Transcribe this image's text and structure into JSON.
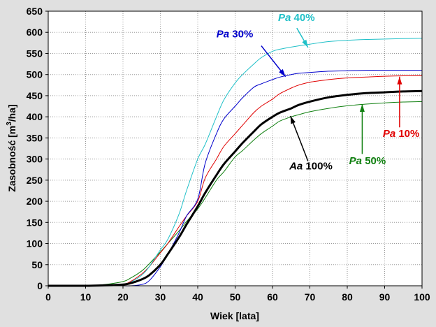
{
  "chart_data": {
    "type": "line",
    "xlabel": "Wiek [lata]",
    "ylabel_prefix": "Zasobność [m",
    "ylabel_sup": "3",
    "ylabel_suffix": "/ha]",
    "xlim": [
      0,
      100
    ],
    "ylim": [
      0,
      650
    ],
    "xticks": [
      0,
      10,
      20,
      30,
      40,
      50,
      60,
      70,
      80,
      90,
      100
    ],
    "yticks": [
      0,
      50,
      100,
      150,
      200,
      250,
      300,
      350,
      400,
      450,
      500,
      550,
      600,
      650
    ],
    "grid": true,
    "x": [
      0,
      10,
      15,
      20,
      22,
      25,
      27,
      30,
      32,
      35,
      37,
      40,
      42,
      45,
      47,
      50,
      52,
      55,
      57,
      60,
      62,
      65,
      67,
      70,
      75,
      80,
      85,
      90,
      95,
      100
    ],
    "series": [
      {
        "name": "Aa 100%",
        "color": "#000000",
        "width": 3,
        "values": [
          0,
          0,
          1,
          3,
          6,
          15,
          25,
          50,
          75,
          115,
          145,
          188,
          220,
          262,
          288,
          318,
          338,
          365,
          382,
          400,
          410,
          420,
          428,
          436,
          446,
          452,
          456,
          458,
          460,
          461
        ]
      },
      {
        "name": "Pa 10%",
        "color": "#e00000",
        "width": 1,
        "values": [
          0,
          0,
          0,
          4,
          10,
          28,
          45,
          78,
          100,
          140,
          165,
          200,
          255,
          300,
          330,
          360,
          380,
          410,
          425,
          442,
          455,
          468,
          475,
          482,
          488,
          492,
          494,
          496,
          497,
          497
        ]
      },
      {
        "name": "Pa 30%",
        "color": "#0000cc",
        "width": 1,
        "values": [
          0,
          0,
          0,
          0,
          0,
          3,
          12,
          45,
          75,
          125,
          165,
          205,
          290,
          360,
          395,
          425,
          445,
          470,
          478,
          488,
          494,
          500,
          503,
          505,
          508,
          509,
          510,
          510,
          510,
          510
        ]
      },
      {
        "name": "Pa 40%",
        "color": "#20c0c8",
        "width": 1,
        "values": [
          0,
          0,
          0,
          2,
          8,
          25,
          45,
          85,
          110,
          170,
          225,
          300,
          335,
          400,
          440,
          480,
          500,
          525,
          540,
          555,
          560,
          565,
          568,
          572,
          578,
          581,
          583,
          584,
          585,
          586
        ]
      },
      {
        "name": "Pa 50%",
        "color": "#108010",
        "width": 1,
        "values": [
          0,
          0,
          3,
          10,
          18,
          35,
          52,
          80,
          100,
          130,
          152,
          182,
          208,
          250,
          270,
          305,
          320,
          345,
          360,
          378,
          390,
          400,
          405,
          412,
          420,
          426,
          430,
          433,
          435,
          436
        ]
      }
    ],
    "annotations": [
      {
        "series": 3,
        "italic": "Pa",
        "rest": " 40%",
        "color": "#20c0c8",
        "label_at": [
          61.5,
          627
        ],
        "arrow_from": [
          66.5,
          610
        ],
        "arrow_to": [
          69.5,
          564
        ]
      },
      {
        "series": 2,
        "italic": "Pa",
        "rest": " 30%",
        "color": "#0000cc",
        "label_at": [
          45,
          588
        ],
        "arrow_from": [
          57,
          568
        ],
        "arrow_to": [
          63.5,
          495
        ]
      },
      {
        "series": 1,
        "italic": "Pa",
        "rest": " 10%",
        "color": "#e00000",
        "label_at": [
          89.5,
          352
        ],
        "arrow_from": [
          94,
          375
        ],
        "arrow_to": [
          94,
          495
        ]
      },
      {
        "series": 0,
        "italic": "Aa",
        "rest": " 100%",
        "color": "#000000",
        "label_at": [
          64.5,
          275
        ],
        "arrow_from": [
          69.5,
          295
        ],
        "arrow_to": [
          64.8,
          402
        ]
      },
      {
        "series": 4,
        "italic": "Pa",
        "rest": " 50%",
        "color": "#108010",
        "label_at": [
          80.5,
          288
        ],
        "arrow_from": [
          84,
          312
        ],
        "arrow_to": [
          84,
          430
        ]
      }
    ]
  }
}
